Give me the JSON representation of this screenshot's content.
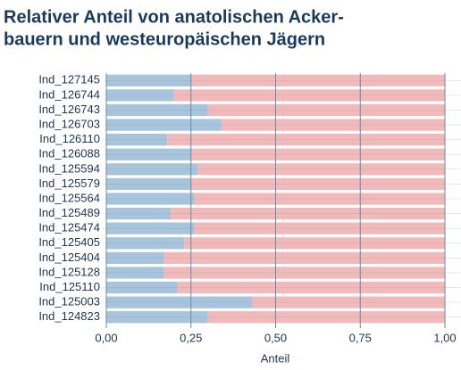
{
  "chart_data": {
    "type": "stacked_barh",
    "title": [
      "Relativer Anteil von anatolischen Acker-",
      "bauern und westeuropäischen Jägern"
    ],
    "xlabel": "Anteil",
    "categories": [
      "Ind_127145",
      "Ind_126744",
      "Ind_126743",
      "Ind_126703",
      "Ind_126110",
      "Ind_126088",
      "Ind_125594",
      "Ind_125579",
      "Ind_125564",
      "Ind_125489",
      "Ind_125474",
      "Ind_125405",
      "Ind_125404",
      "Ind_125128",
      "Ind_125110",
      "Ind_125003",
      "Ind_124823"
    ],
    "series": [
      {
        "color": "#a7c4dc",
        "values": [
          0.25,
          0.2,
          0.3,
          0.34,
          0.18,
          0.25,
          0.27,
          0.25,
          0.26,
          0.19,
          0.26,
          0.23,
          0.17,
          0.17,
          0.21,
          0.43,
          0.3
        ]
      },
      {
        "color": "#f2b9ba",
        "values": [
          0.75,
          0.8,
          0.7,
          0.66,
          0.82,
          0.75,
          0.73,
          0.75,
          0.74,
          0.81,
          0.74,
          0.77,
          0.83,
          0.83,
          0.79,
          0.57,
          0.7
        ]
      }
    ],
    "xlim": [
      0,
      1
    ],
    "xticks": [
      {
        "value": 0,
        "label": "0,00"
      },
      {
        "value": 0.25,
        "label": "0,25"
      },
      {
        "value": 0.5,
        "label": "0,50"
      },
      {
        "value": 0.75,
        "label": "0,75"
      },
      {
        "value": 1,
        "label": "1,00"
      }
    ],
    "grid": true
  }
}
